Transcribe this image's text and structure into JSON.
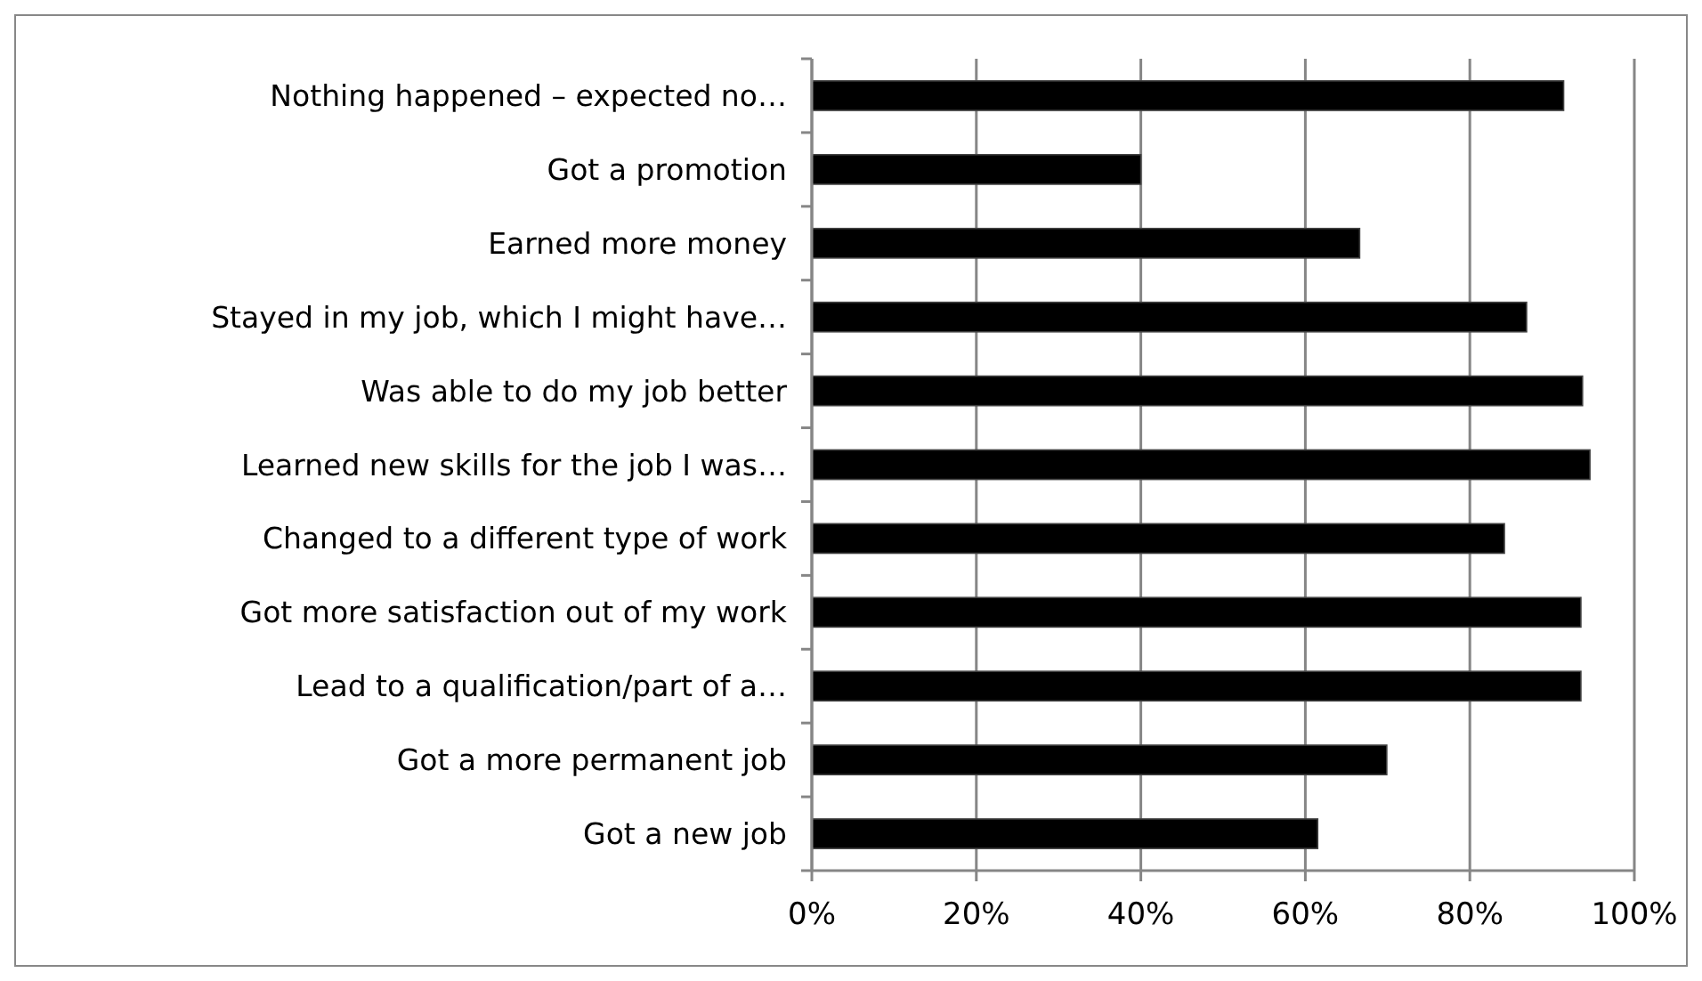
{
  "chart_data": {
    "type": "bar",
    "orientation": "horizontal",
    "categories": [
      "Nothing happened – expected no…",
      "Got a promotion",
      "Earned more money",
      "Stayed in my job, which I might have…",
      "Was able to do my job better",
      "Learned new skills for the job I was…",
      "Changed to a different type of work",
      "Got more satisfaction out of my work",
      "Lead to a qualification/part of a…",
      "Got a more permanent job",
      "Got a new job"
    ],
    "values": [
      91.4,
      40,
      66.6,
      86.9,
      93.7,
      94.6,
      84.2,
      93.5,
      93.5,
      69.9,
      61.5
    ],
    "color": "#000000",
    "xlim": [
      0,
      100
    ],
    "xticks": [
      {
        "value": 0,
        "label": "0%"
      },
      {
        "value": 20,
        "label": "20%"
      },
      {
        "value": 40,
        "label": "40%"
      },
      {
        "value": 60,
        "label": "60%"
      },
      {
        "value": 80,
        "label": "80%"
      },
      {
        "value": 100,
        "label": "100%"
      }
    ],
    "grid": "x"
  }
}
